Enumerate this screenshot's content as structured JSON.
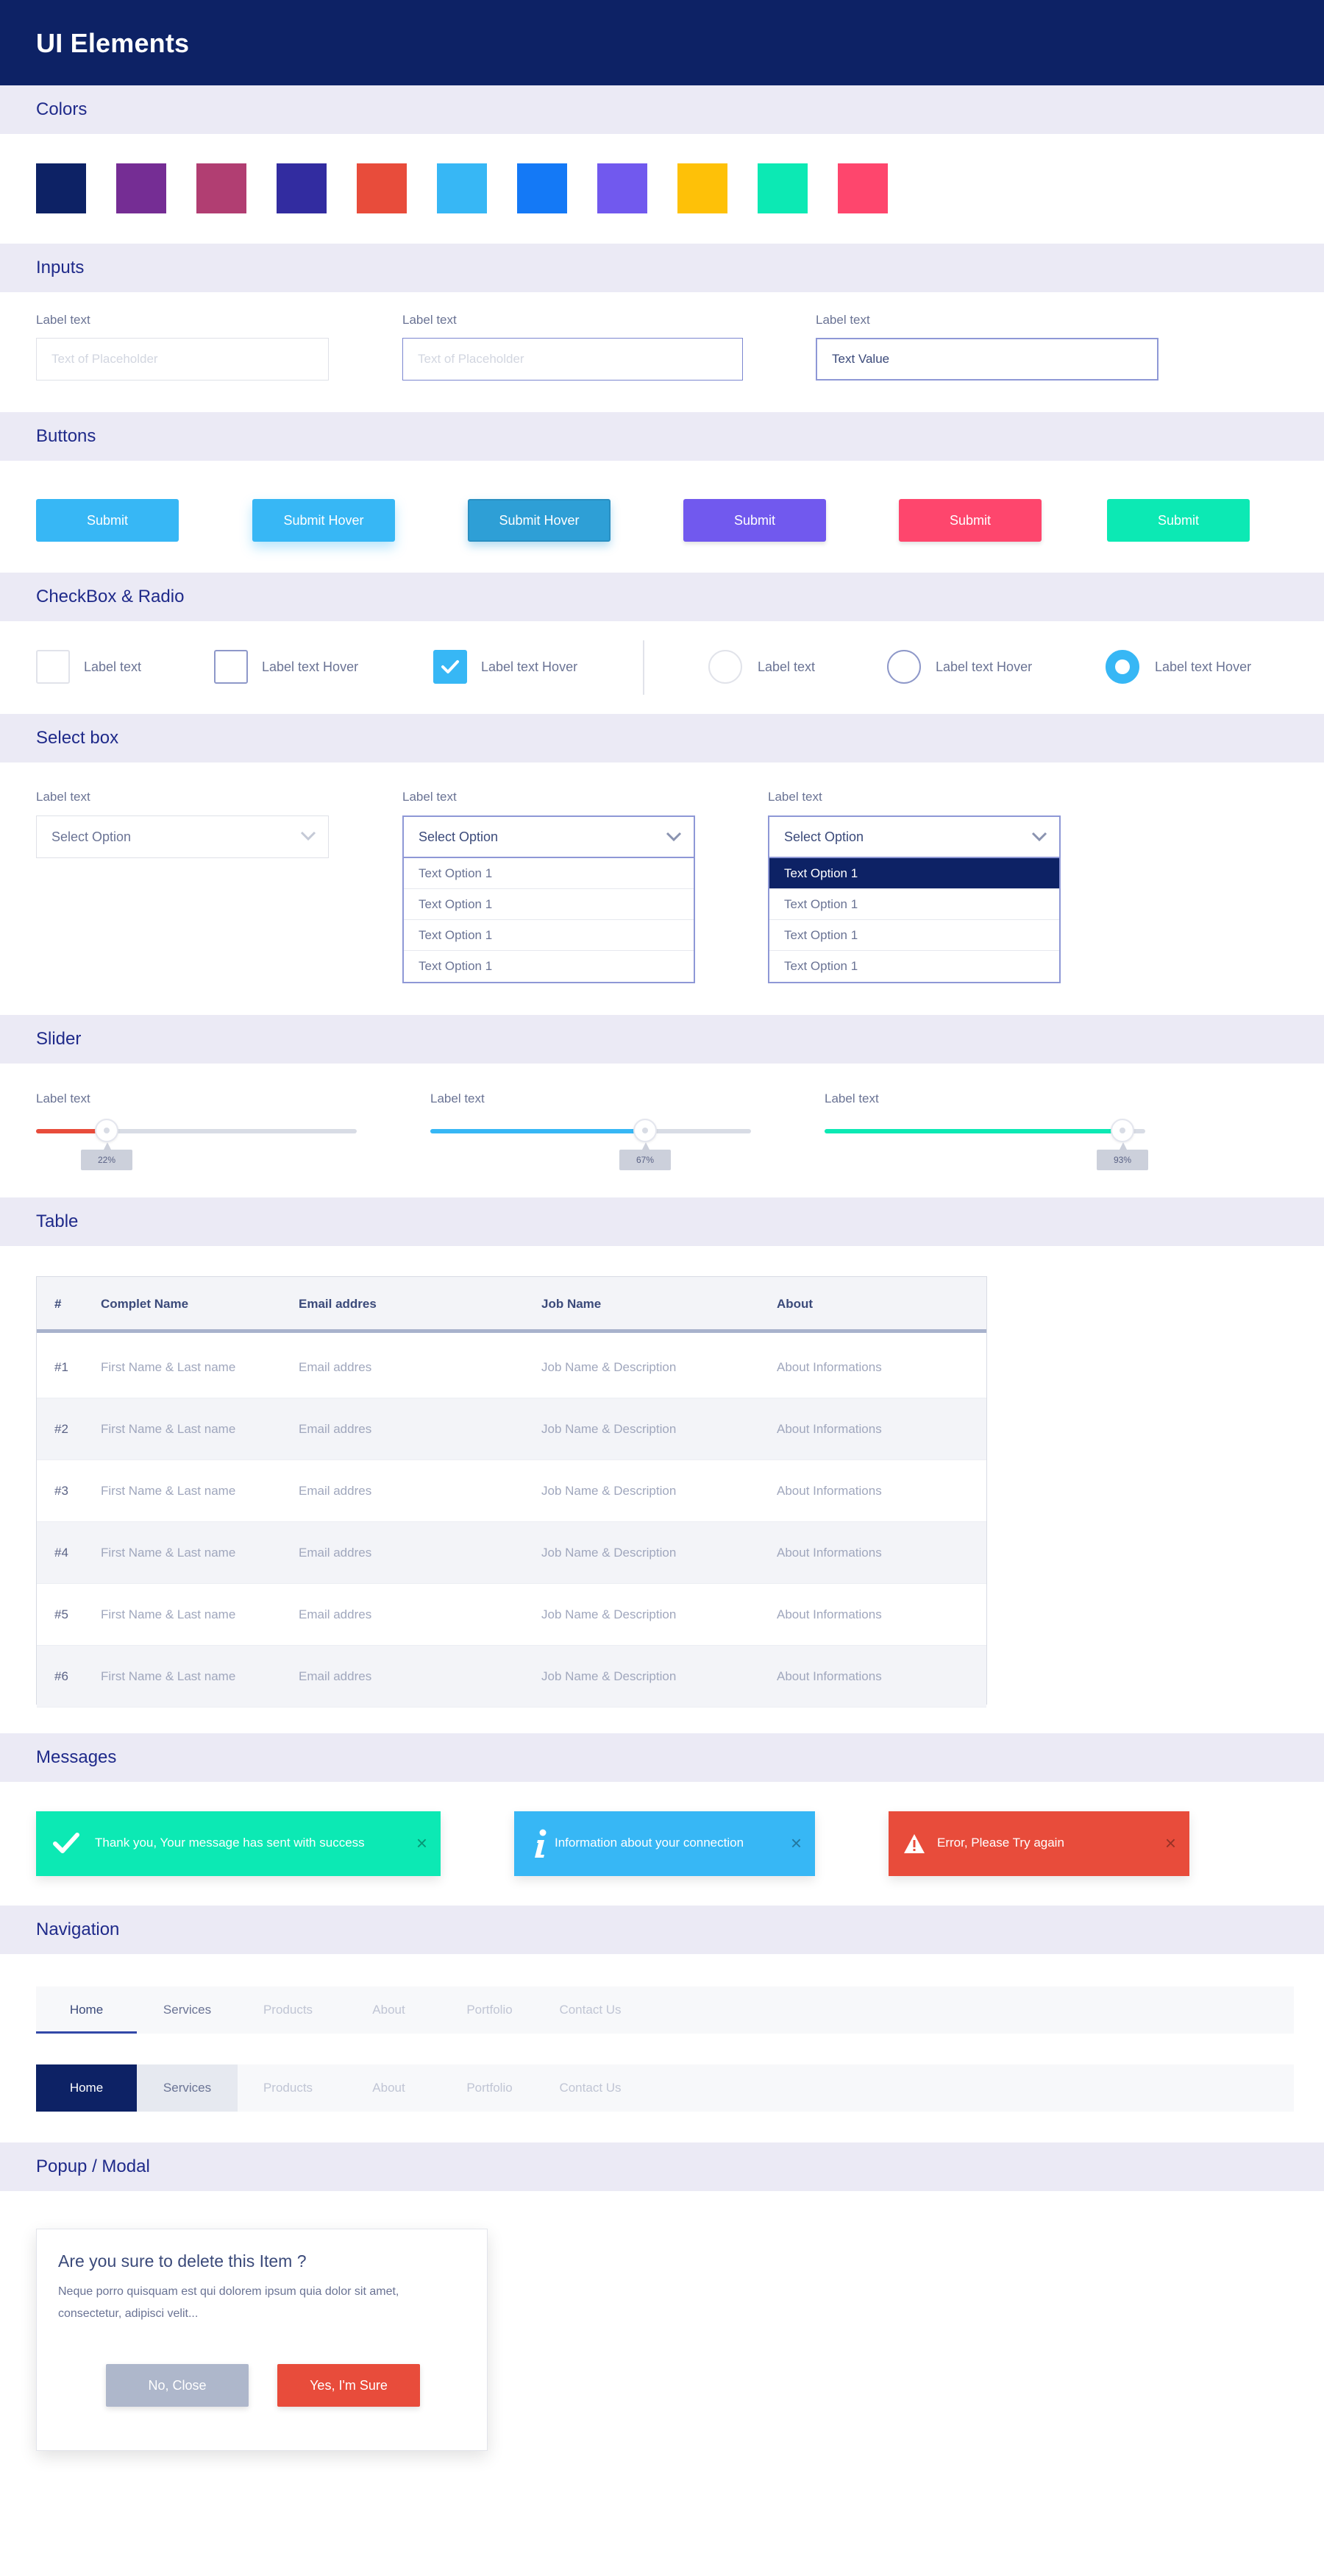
{
  "header": {
    "title": "UI Elements"
  },
  "sections": {
    "colors": "Colors",
    "inputs": "Inputs",
    "buttons": "Buttons",
    "checkbox": "CheckBox & Radio",
    "select": "Select box",
    "slider": "Slider",
    "table": "Table",
    "messages": "Messages",
    "navigation": "Navigation",
    "modal": "Popup / Modal"
  },
  "colors": [
    "#0d2265",
    "#752d94",
    "#b13e72",
    "#322ca0",
    "#e84c3b",
    "#37b7f5",
    "#1479f6",
    "#7159ee",
    "#fec108",
    "#0ce9b4",
    "#fe466d"
  ],
  "inputs": {
    "label": "Label text",
    "default_placeholder": "Text of Placeholder",
    "hover_placeholder": "Text of Placeholder",
    "value": "Text Value"
  },
  "buttons": {
    "b1": {
      "label": "Submit",
      "color": "#37b7f5"
    },
    "b2": {
      "label": "Submit Hover",
      "color": "#37b7f5"
    },
    "b3": {
      "label": "Submit Hover",
      "color": "#2e9fd6"
    },
    "b4": {
      "label": "Submit",
      "color": "#7159ee"
    },
    "b5": {
      "label": "Submit",
      "color": "#fe466d"
    },
    "b6": {
      "label": "Submit",
      "color": "#0ce9b4"
    }
  },
  "checkbox": {
    "cb1": "Label text",
    "cb2": "Label text Hover",
    "cb3": "Label text Hover",
    "r1": "Label text",
    "r2": "Label text Hover",
    "r3": "Label text Hover"
  },
  "select": {
    "label": "Label text",
    "placeholder": "Select Option",
    "option": "Text Option 1"
  },
  "slider": {
    "label": "Label text",
    "s1": {
      "value": "22%",
      "color": "#e84c3b"
    },
    "s2": {
      "value": "67%",
      "color": "#37b7f5"
    },
    "s3": {
      "value": "93%",
      "color": "#0ce9b4"
    }
  },
  "table": {
    "headers": [
      "#",
      "Complet Name",
      "Email addres",
      "Job Name",
      "About"
    ],
    "rows": [
      [
        "#1",
        "First Name & Last name",
        "Email addres",
        "Job Name & Description",
        "About Informations"
      ],
      [
        "#2",
        "First Name & Last name",
        "Email addres",
        "Job Name & Description",
        "About Informations"
      ],
      [
        "#3",
        "First Name & Last name",
        "Email addres",
        "Job Name & Description",
        "About Informations"
      ],
      [
        "#4",
        "First Name & Last name",
        "Email addres",
        "Job Name & Description",
        "About Informations"
      ],
      [
        "#5",
        "First Name & Last name",
        "Email addres",
        "Job Name & Description",
        "About Informations"
      ],
      [
        "#6",
        "First Name & Last name",
        "Email addres",
        "Job Name & Description",
        "About Informations"
      ]
    ]
  },
  "messages": {
    "success": {
      "text": "Thank you, Your message has sent with success",
      "color": "#0ce9b4",
      "icon": "check-icon"
    },
    "info": {
      "text": "Information about your connection",
      "color": "#37b7f5",
      "icon": "info-icon"
    },
    "error": {
      "text": "Error, Please Try again",
      "color": "#e84c3b",
      "icon": "warning-icon"
    },
    "close": "×"
  },
  "navigation": {
    "items": [
      "Home",
      "Services",
      "Products",
      "About",
      "Portfolio",
      "Contact Us"
    ]
  },
  "modal": {
    "title": "Are you sure to delete this Item ?",
    "body_line1": "Neque porro quisquam est qui dolorem ipsum quia dolor sit amet,",
    "body_line2": "consectetur, adipisci velit...",
    "cancel": "No, Close",
    "confirm": "Yes, I'm Sure",
    "cancel_color": "#aeb7cb",
    "confirm_color": "#e84c3b"
  }
}
